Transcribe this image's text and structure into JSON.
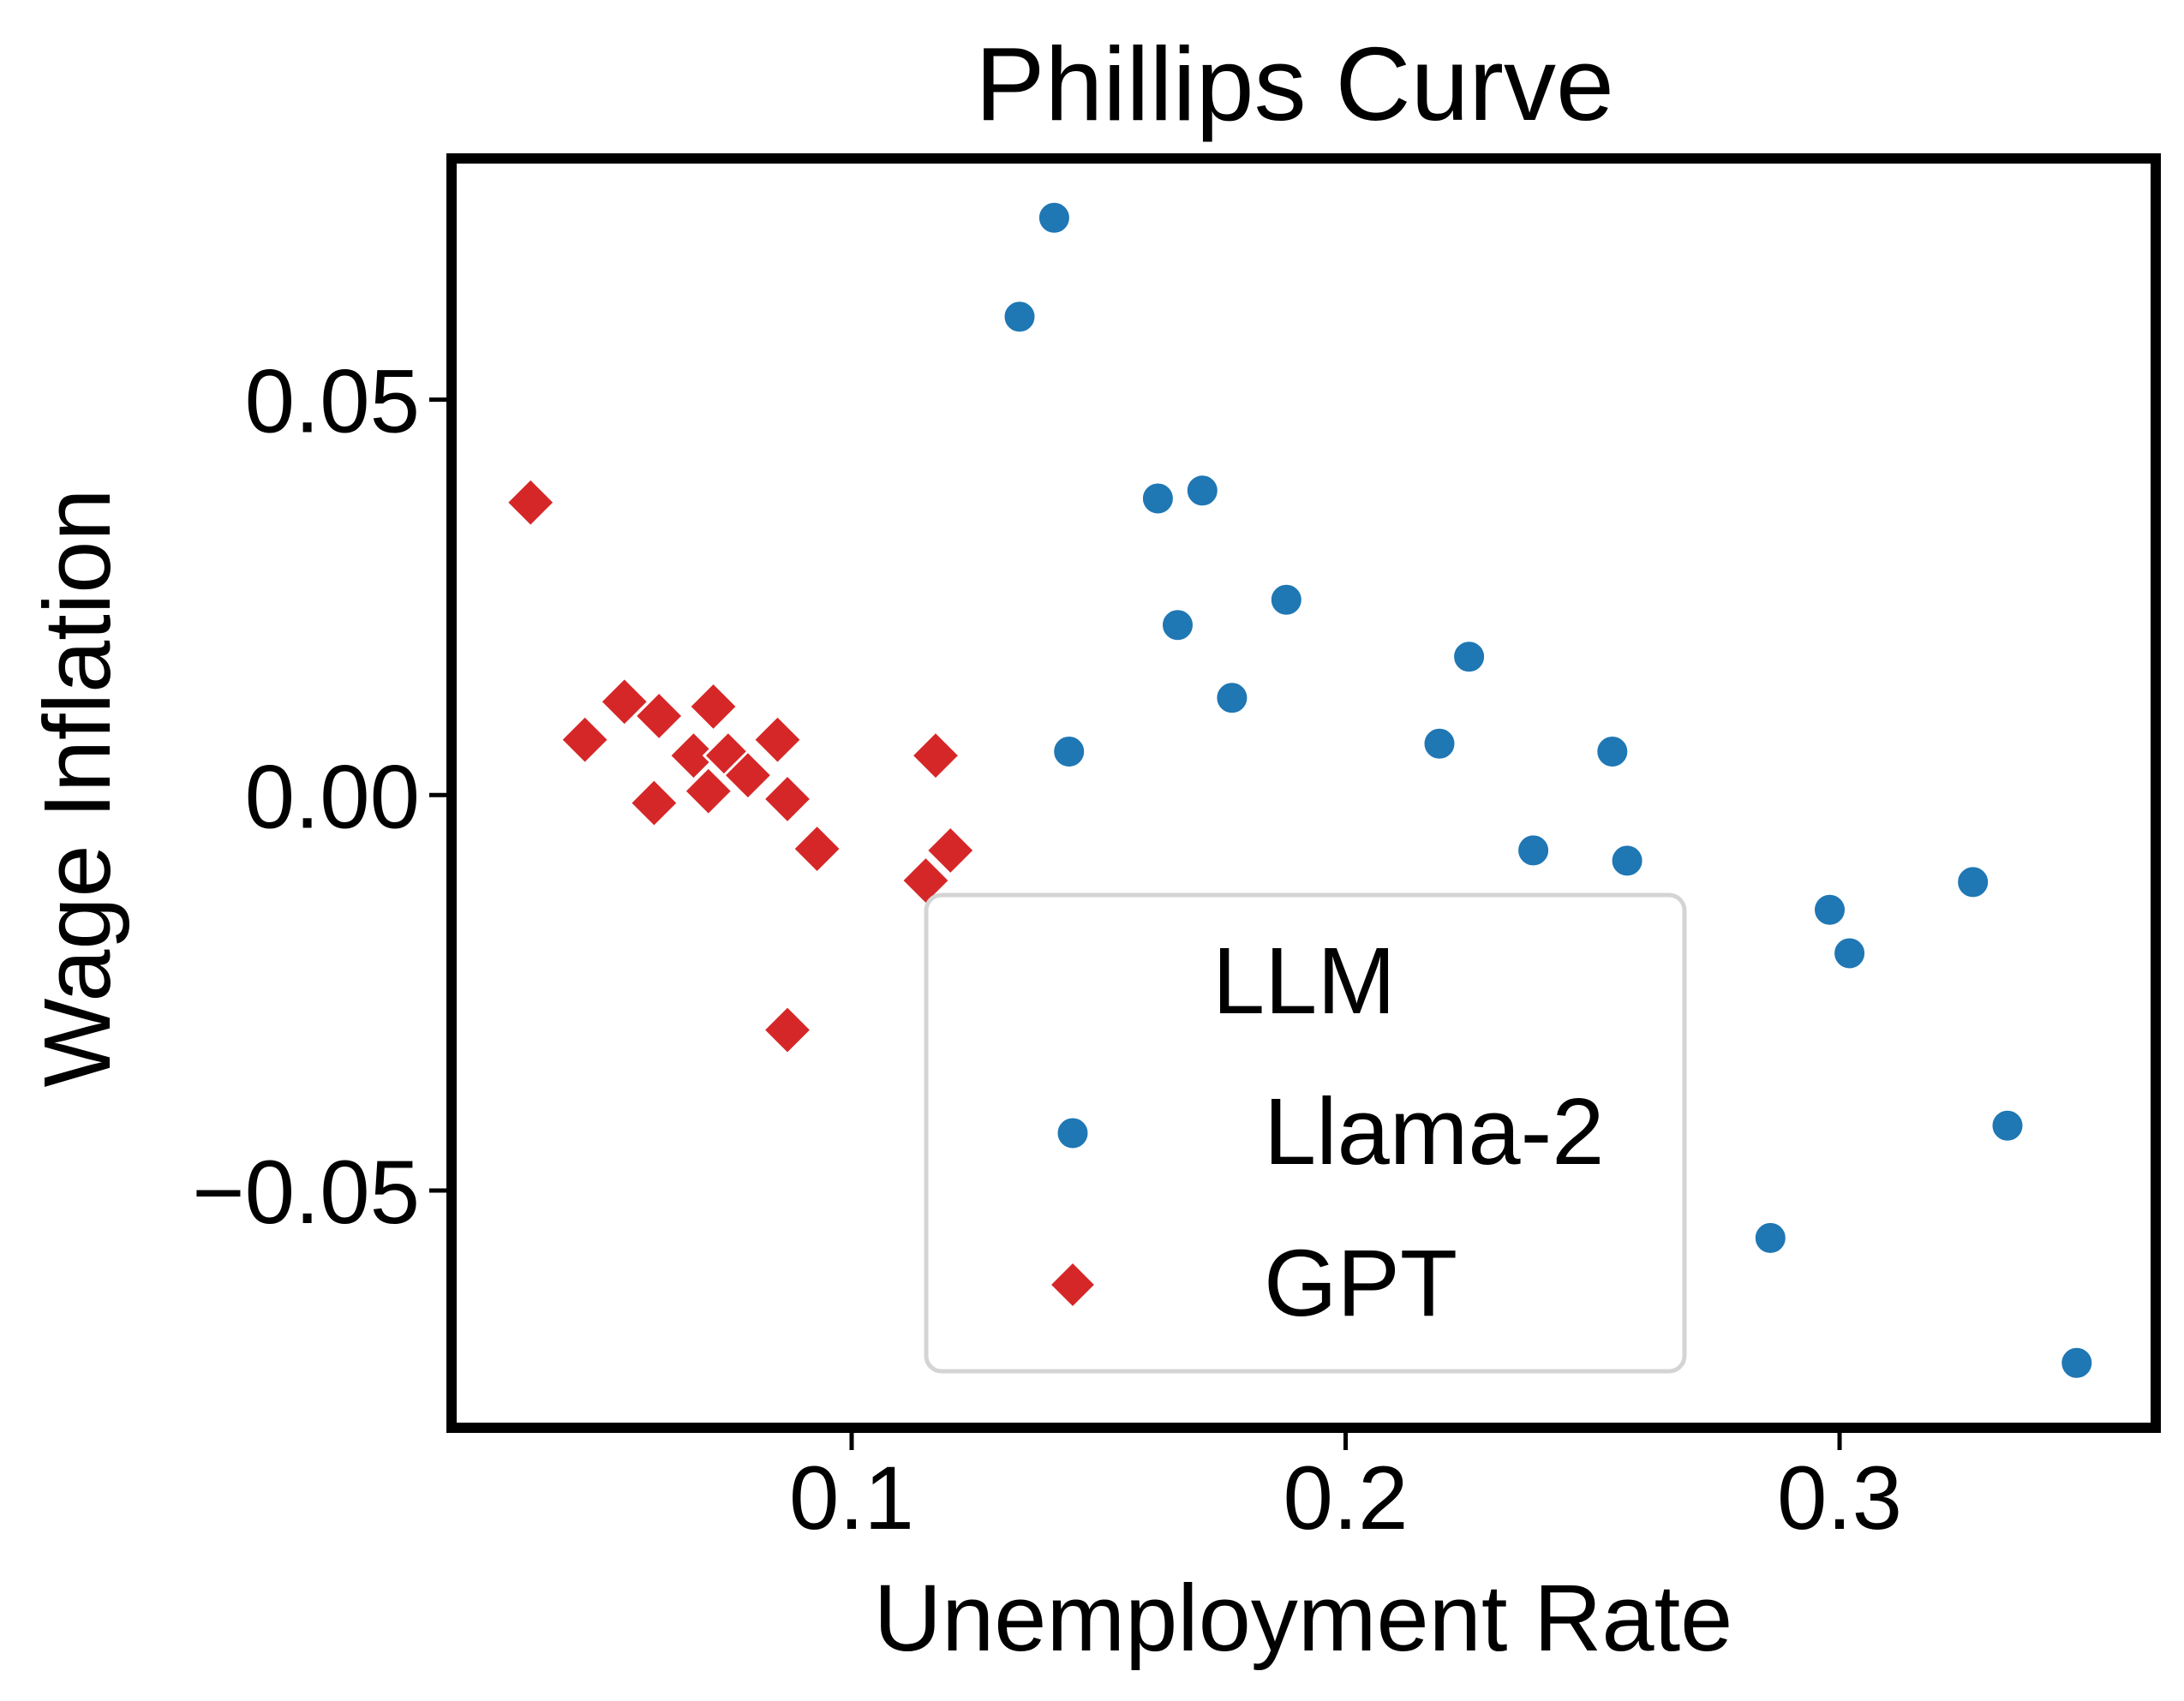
{
  "chart_data": {
    "type": "scatter",
    "title": "Phillips Curve",
    "xlabel": "Unemployment Rate",
    "ylabel": "Wage Inflation",
    "xlim": [
      0.019,
      0.364
    ],
    "ylim": [
      -0.08,
      0.0805
    ],
    "xticks": [
      0.1,
      0.2,
      0.3
    ],
    "xtick_labels": [
      "0.1",
      "0.2",
      "0.3"
    ],
    "yticks": [
      0.05,
      0.0,
      -0.05
    ],
    "ytick_labels": [
      "0.05",
      "0.00",
      "−0.05"
    ],
    "grid": false,
    "legend": {
      "title": "LLM",
      "position": "lower-center"
    },
    "series": [
      {
        "name": "Llama-2",
        "marker": "circle",
        "color": "#1f77b4",
        "points": [
          {
            "x": 0.141,
            "y": 0.073
          },
          {
            "x": 0.134,
            "y": 0.0605
          },
          {
            "x": 0.144,
            "y": 0.0055
          },
          {
            "x": 0.162,
            "y": 0.0375
          },
          {
            "x": 0.171,
            "y": 0.0385
          },
          {
            "x": 0.166,
            "y": 0.0215
          },
          {
            "x": 0.177,
            "y": 0.0123
          },
          {
            "x": 0.188,
            "y": 0.0247
          },
          {
            "x": 0.219,
            "y": 0.0065
          },
          {
            "x": 0.225,
            "y": 0.0175
          },
          {
            "x": 0.238,
            "y": -0.007
          },
          {
            "x": 0.254,
            "y": 0.0055
          },
          {
            "x": 0.257,
            "y": -0.0083
          },
          {
            "x": 0.298,
            "y": -0.0145
          },
          {
            "x": 0.302,
            "y": -0.02
          },
          {
            "x": 0.327,
            "y": -0.011
          },
          {
            "x": 0.334,
            "y": -0.0418
          },
          {
            "x": 0.348,
            "y": -0.0718
          },
          {
            "x": 0.286,
            "y": -0.056
          }
        ]
      },
      {
        "name": "GPT",
        "marker": "diamond",
        "color": "#d62728",
        "points": [
          {
            "x": 0.035,
            "y": 0.037
          },
          {
            "x": 0.046,
            "y": 0.007
          },
          {
            "x": 0.054,
            "y": 0.0118
          },
          {
            "x": 0.061,
            "y": 0.01
          },
          {
            "x": 0.06,
            "y": -0.001
          },
          {
            "x": 0.068,
            "y": 0.005
          },
          {
            "x": 0.072,
            "y": 0.0112
          },
          {
            "x": 0.071,
            "y": 0.0005
          },
          {
            "x": 0.075,
            "y": 0.005
          },
          {
            "x": 0.079,
            "y": 0.0025
          },
          {
            "x": 0.085,
            "y": 0.007
          },
          {
            "x": 0.087,
            "y": -0.0005
          },
          {
            "x": 0.093,
            "y": -0.0068
          },
          {
            "x": 0.087,
            "y": -0.0297
          },
          {
            "x": 0.115,
            "y": -0.0108
          },
          {
            "x": 0.117,
            "y": 0.005
          },
          {
            "x": 0.12,
            "y": -0.007
          }
        ]
      }
    ]
  }
}
